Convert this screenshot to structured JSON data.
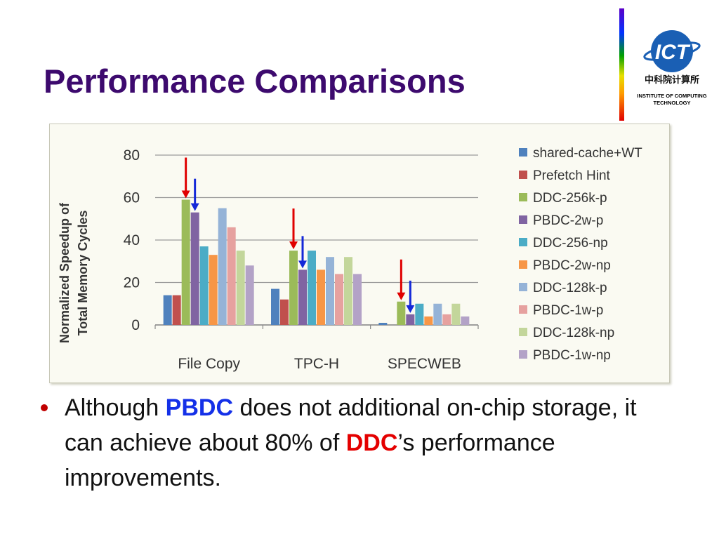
{
  "slide": {
    "title": "Performance Comparisons",
    "logo": {
      "text": "ICT",
      "chinese_name": "中科院计算所",
      "institute_line1": "INSTITUTE OF COMPUTING",
      "institute_line2": "TECHNOLOGY"
    },
    "bullet": {
      "part1": "Although ",
      "pbdc": "PBDC",
      "part2": " does not additional on-chip storage, it can achieve about 80% of ",
      "ddc": "DDC",
      "part3": "’s performance improvements."
    }
  },
  "chart_data": {
    "type": "bar",
    "ylabel_line1": "Normalized Speedup of",
    "ylabel_line2": "Total Memory Cycles",
    "xlabel": "",
    "ylim": [
      0,
      80
    ],
    "yticks": [
      0,
      20,
      40,
      60,
      80
    ],
    "grid": true,
    "legend_position": "right",
    "categories": [
      "File Copy",
      "TPC-H",
      "SPECWEB"
    ],
    "series": [
      {
        "name": "shared-cache+WT",
        "color": "#4f81bd",
        "values": [
          14,
          17,
          1
        ]
      },
      {
        "name": "Prefetch Hint",
        "color": "#c0504d",
        "values": [
          14,
          12,
          0
        ]
      },
      {
        "name": "DDC-256k-p",
        "color": "#9bbb59",
        "values": [
          59,
          35,
          11
        ]
      },
      {
        "name": "PBDC-2w-p",
        "color": "#8064a2",
        "values": [
          53,
          26,
          5
        ]
      },
      {
        "name": "DDC-256-np",
        "color": "#4bacc6",
        "values": [
          37,
          35,
          10
        ]
      },
      {
        "name": "PBDC-2w-np",
        "color": "#f79646",
        "values": [
          33,
          26,
          4
        ]
      },
      {
        "name": "DDC-128k-p",
        "color": "#95b3d7",
        "values": [
          55,
          32,
          10
        ]
      },
      {
        "name": "PBDC-1w-p",
        "color": "#e6a19f",
        "values": [
          46,
          24,
          5
        ]
      },
      {
        "name": "DDC-128k-np",
        "color": "#c3d69b",
        "values": [
          35,
          32,
          10
        ]
      },
      {
        "name": "PBDC-1w-np",
        "color": "#b3a2c7",
        "values": [
          28,
          24,
          4
        ]
      }
    ],
    "annotations": [
      {
        "category": "File Copy",
        "series": "DDC-256k-p",
        "arrow_color": "#e00000"
      },
      {
        "category": "File Copy",
        "series": "PBDC-2w-p",
        "arrow_color": "#1428d8"
      },
      {
        "category": "TPC-H",
        "series": "DDC-256k-p",
        "arrow_color": "#e00000"
      },
      {
        "category": "TPC-H",
        "series": "PBDC-2w-p",
        "arrow_color": "#1428d8"
      },
      {
        "category": "SPECWEB",
        "series": "DDC-256k-p",
        "arrow_color": "#e00000"
      },
      {
        "category": "SPECWEB",
        "series": "PBDC-2w-p",
        "arrow_color": "#1428d8"
      }
    ]
  }
}
